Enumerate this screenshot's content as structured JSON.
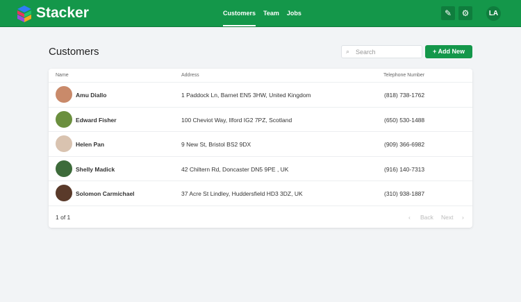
{
  "app": {
    "brand": "Stacker",
    "nav": [
      "Customers",
      "Team",
      "Jobs"
    ],
    "active_nav": "Customers",
    "avatar": "LA",
    "icons": [
      "pencil-icon",
      "gear-icon"
    ]
  },
  "page": {
    "title": "Customers",
    "search_placeholder": "Search",
    "add_label": "Add New"
  },
  "table": {
    "columns": [
      "Name",
      "Address",
      "Telephone Number"
    ],
    "rows": [
      {
        "name": "Amu Diallo",
        "address": "1 Paddock Ln, Barnet EN5 3HW, United Kingdom",
        "phone": "(818) 738-1762",
        "color": "#c98a6a"
      },
      {
        "name": "Edward Fisher",
        "address": "100 Cheviot Way, Ilford IG2 7PZ, Scotland",
        "phone": "(650) 530-1488",
        "color": "#6b8f3e"
      },
      {
        "name": "Helen Pan",
        "address": "9 New St, Bristol BS2 9DX",
        "phone": "(909) 366-6982",
        "color": "#d9c3b0"
      },
      {
        "name": "Shelly Madick",
        "address": "42 Chiltern Rd, Doncaster DN5 9PE , UK",
        "phone": "(916) 140-7313",
        "color": "#3d6b3a"
      },
      {
        "name": "Solomon Carmichael",
        "address": "37 Acre St Lindley, Huddersfield HD3 3DZ, UK",
        "phone": "(310) 938-1887",
        "color": "#5a3a2a"
      }
    ]
  },
  "pagination": {
    "summary": "1 of 1",
    "back": "Back",
    "next": "Next"
  }
}
